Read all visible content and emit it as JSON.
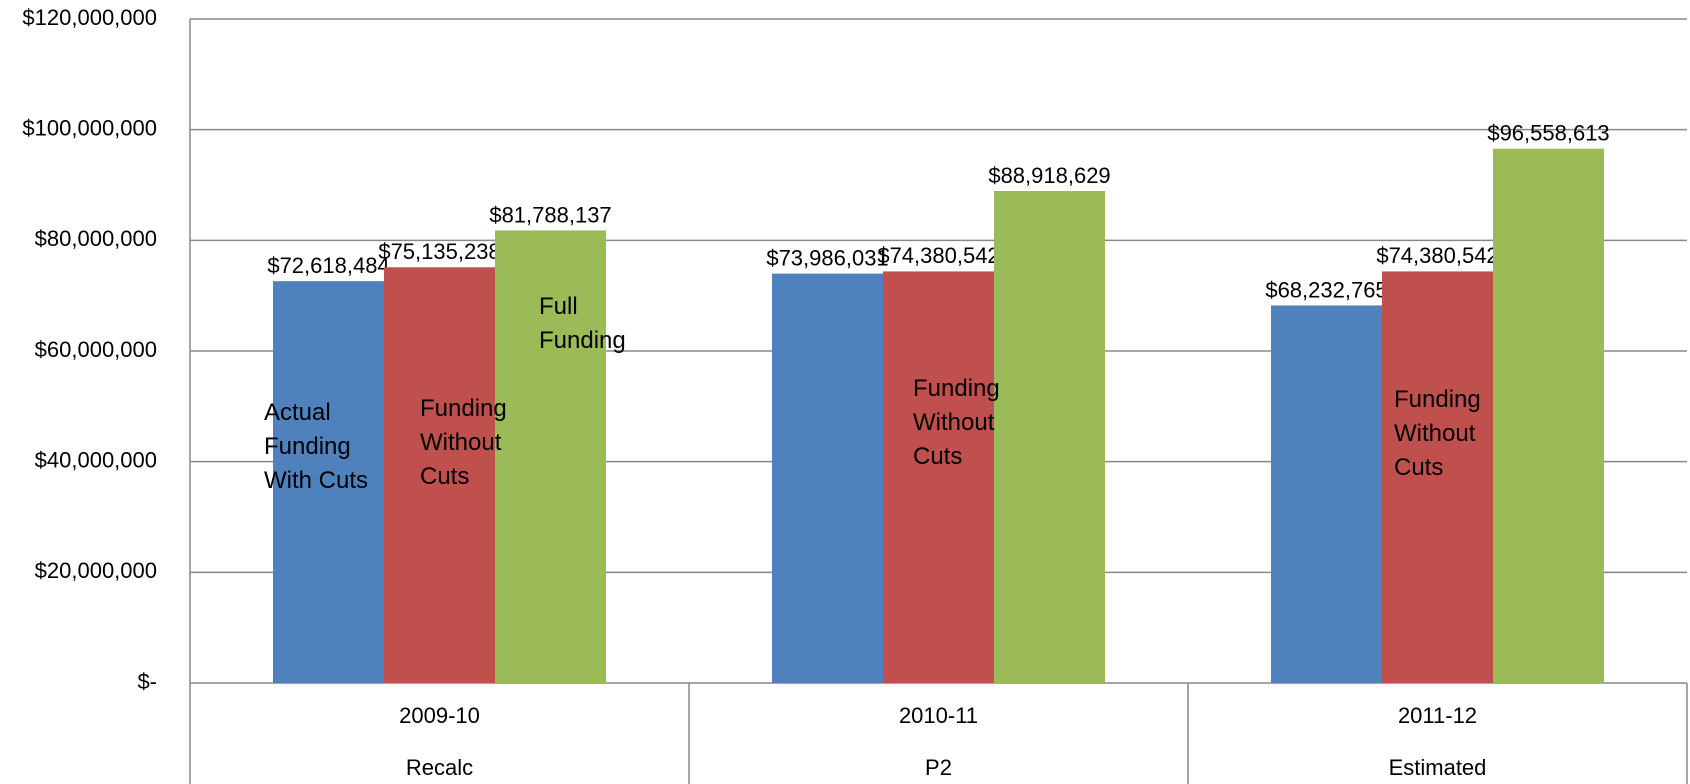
{
  "chart_data": {
    "type": "bar",
    "categories": [
      "2009-10",
      "2010-11",
      "2011-12"
    ],
    "category_groups": [
      "Recalc",
      "P2",
      "Estimated"
    ],
    "series": [
      {
        "name": "Actual Funding With Cuts",
        "color": "#4f81bd",
        "values": [
          72618484,
          73986031,
          68232765
        ],
        "value_labels": [
          "$72,618,484",
          "$73,986,031",
          "$68,232,765"
        ]
      },
      {
        "name": "Funding Without Cuts",
        "color": "#c0504d",
        "values": [
          75135238,
          74380542,
          74380542
        ],
        "value_labels": [
          "$75,135,238",
          "$74,380,542",
          "$74,380,542"
        ]
      },
      {
        "name": "Full Funding",
        "color": "#9bbb59",
        "values": [
          81788137,
          88918629,
          96558613
        ],
        "value_labels": [
          "$81,788,137",
          "$88,918,629",
          "$96,558,613"
        ]
      }
    ],
    "annotations": [
      "Actual Funding With Cuts",
      "Funding Without Cuts",
      "Full Funding",
      "Funding Without Cuts",
      "Funding Without Cuts"
    ],
    "ylim": [
      0,
      120000000
    ],
    "yticks": [
      {
        "value": 0,
        "label": "$-"
      },
      {
        "value": 20000000,
        "label": "$20,000,000"
      },
      {
        "value": 40000000,
        "label": "$40,000,000"
      },
      {
        "value": 60000000,
        "label": "$60,000,000"
      },
      {
        "value": 80000000,
        "label": "$80,000,000"
      },
      {
        "value": 100000000,
        "label": "$100,000,000"
      },
      {
        "value": 120000000,
        "label": "$120,000,000"
      }
    ],
    "grid": true
  }
}
